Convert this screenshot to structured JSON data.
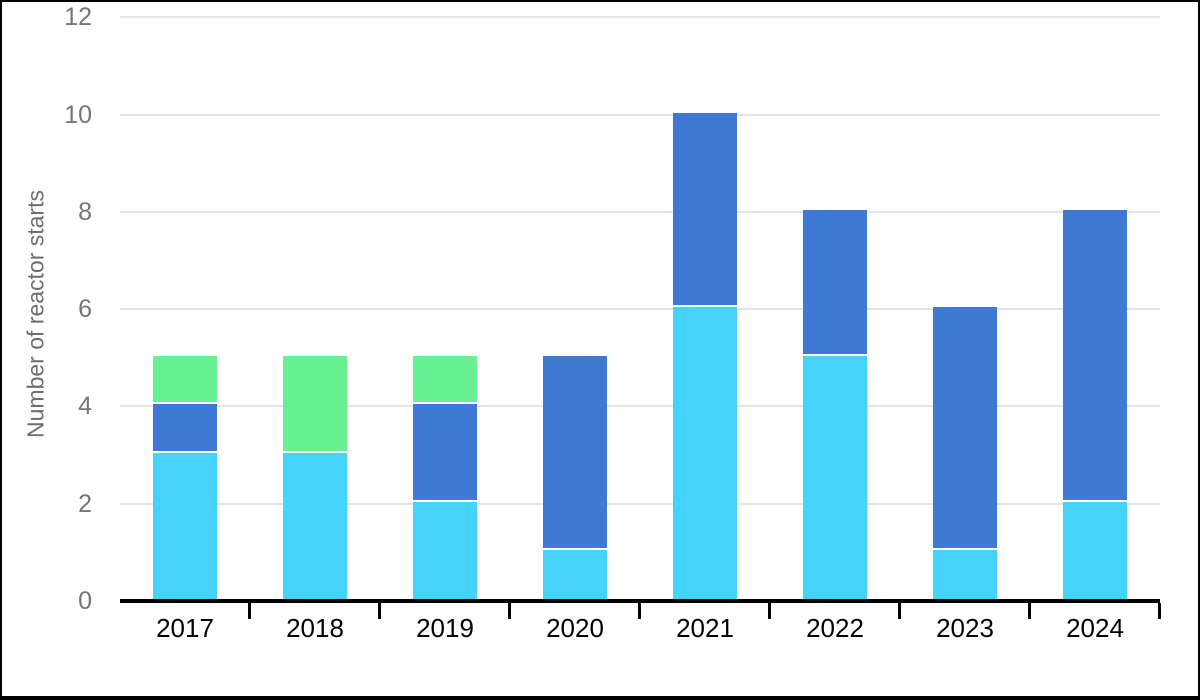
{
  "chart_data": {
    "type": "bar",
    "stacked": true,
    "title": "",
    "xlabel": "",
    "ylabel": "Number of reactor starts",
    "categories": [
      "2017",
      "2018",
      "2019",
      "2020",
      "2021",
      "2022",
      "2023",
      "2024"
    ],
    "series": [
      {
        "name": "light-blue",
        "color": "#45D3FC",
        "values": [
          3,
          3,
          2,
          1,
          6,
          5,
          1,
          2
        ]
      },
      {
        "name": "medium-blue",
        "color": "#3E7AD3",
        "values": [
          1,
          0,
          2,
          4,
          4,
          3,
          5,
          6
        ]
      },
      {
        "name": "green",
        "color": "#66F092",
        "values": [
          1,
          2,
          1,
          0,
          0,
          0,
          0,
          0
        ]
      }
    ],
    "ylim": [
      0,
      12
    ],
    "yticks": [
      0,
      2,
      4,
      6,
      8,
      10,
      12
    ],
    "grid": true,
    "legend": "none"
  },
  "style": {
    "background": "#FFFFFF",
    "frame_border": "#000000",
    "gridline": "#E4E4E4",
    "axis_line": "#000000",
    "y_tick_color": "#757575",
    "x_label_color": "#000000",
    "y_title_color": "#6E6E6E",
    "segment_separator": "#FFFFFF"
  }
}
